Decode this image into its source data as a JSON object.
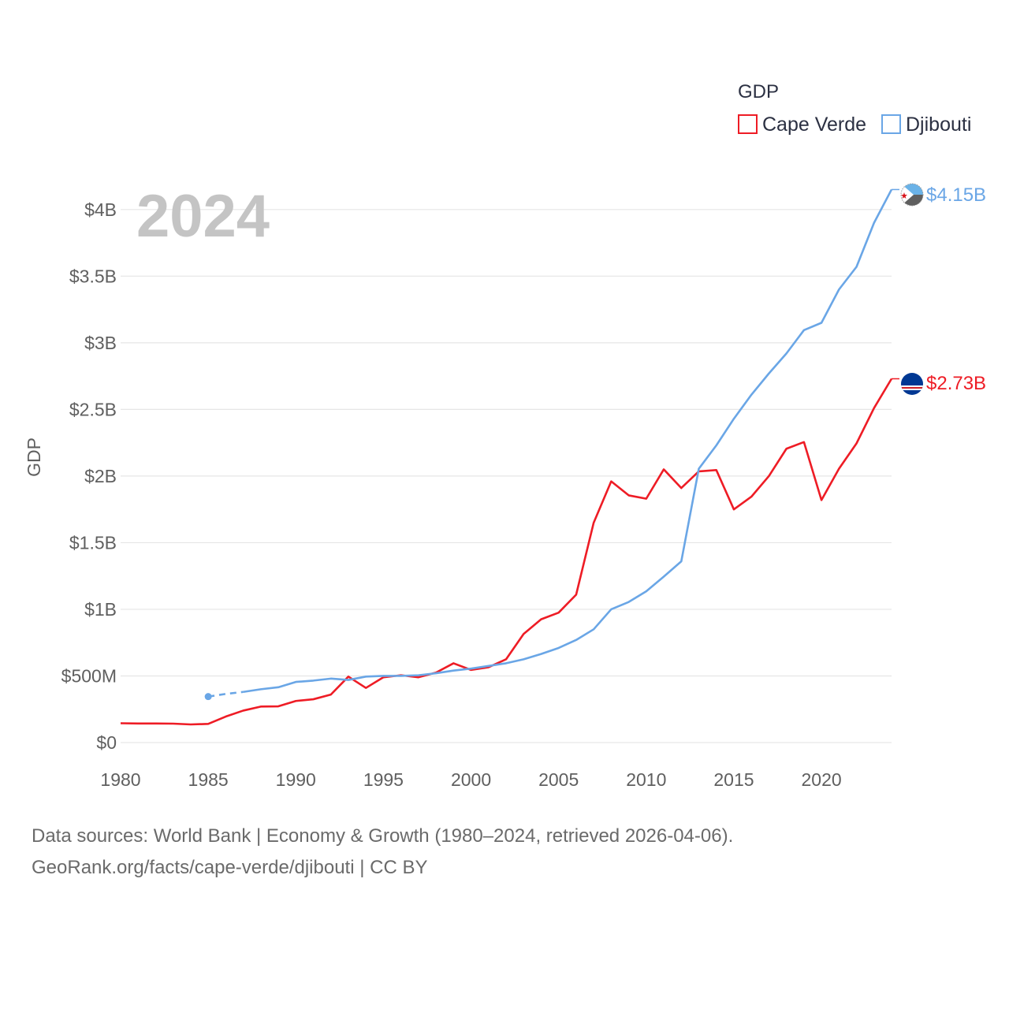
{
  "colors": {
    "cape_verde": "#ee1c25",
    "djibouti": "#6aa6e6",
    "grid": "#e6e6e6",
    "text": "#5f5f5f",
    "year_watermark": "#c4c4c4"
  },
  "chart_data": {
    "type": "line",
    "title": "",
    "year_label": "2024",
    "xlabel": "",
    "ylabel": "GDP",
    "xlim": [
      1980,
      2024
    ],
    "ylim": [
      0,
      4200000000
    ],
    "x_ticks": [
      1980,
      1985,
      1990,
      1995,
      2000,
      2005,
      2010,
      2015,
      2020
    ],
    "x_tick_labels": [
      "1980",
      "1985",
      "1990",
      "1995",
      "2000",
      "2005",
      "2010",
      "2015",
      "2020"
    ],
    "y_ticks": [
      0,
      500000000,
      1000000000,
      1500000000,
      2000000000,
      2500000000,
      3000000000,
      3500000000,
      4000000000
    ],
    "y_tick_labels": [
      "$0",
      "$500M",
      "$1B",
      "$1.5B",
      "$2B",
      "$2.5B",
      "$3B",
      "$3.5B",
      "$4B"
    ],
    "legend": {
      "title": "GDP",
      "position": "top-right",
      "entries": [
        "Cape Verde",
        "Djibouti"
      ]
    },
    "series": [
      {
        "name": "Cape Verde",
        "color": "#ee1c25",
        "end_label": "$2.73B",
        "x": [
          1980,
          1981,
          1982,
          1983,
          1984,
          1985,
          1986,
          1987,
          1988,
          1989,
          1990,
          1991,
          1992,
          1993,
          1994,
          1995,
          1996,
          1997,
          1998,
          1999,
          2000,
          2001,
          2002,
          2003,
          2004,
          2005,
          2006,
          2007,
          2008,
          2009,
          2010,
          2011,
          2012,
          2013,
          2014,
          2015,
          2016,
          2017,
          2018,
          2019,
          2020,
          2021,
          2022,
          2023,
          2024
        ],
        "values": [
          145000000,
          143000000,
          143000000,
          142000000,
          136000000,
          140000000,
          195000000,
          240000000,
          270000000,
          272000000,
          312000000,
          325000000,
          360000000,
          495000000,
          410000000,
          490000000,
          505000000,
          490000000,
          525000000,
          595000000,
          545000000,
          565000000,
          625000000,
          815000000,
          925000000,
          975000000,
          1110000000,
          1650000000,
          1960000000,
          1855000000,
          1830000000,
          2050000000,
          1910000000,
          2035000000,
          2045000000,
          1750000000,
          1845000000,
          2000000000,
          2205000000,
          2255000000,
          1820000000,
          2055000000,
          2245000000,
          2510000000,
          2730000000
        ]
      },
      {
        "name": "Djibouti",
        "color": "#6aa6e6",
        "end_label": "$4.15B",
        "dashed_until": 1987,
        "x": [
          1985,
          1986,
          1987,
          1988,
          1989,
          1990,
          1991,
          1992,
          1993,
          1994,
          1995,
          1996,
          1997,
          1998,
          1999,
          2000,
          2001,
          2002,
          2003,
          2004,
          2005,
          2006,
          2007,
          2008,
          2009,
          2010,
          2011,
          2012,
          2013,
          2014,
          2015,
          2016,
          2017,
          2018,
          2019,
          2020,
          2021,
          2022,
          2023,
          2024
        ],
        "values": [
          345000000,
          365000000,
          380000000,
          400000000,
          415000000,
          455000000,
          465000000,
          480000000,
          470000000,
          495000000,
          500000000,
          500000000,
          505000000,
          520000000,
          540000000,
          555000000,
          575000000,
          595000000,
          625000000,
          665000000,
          710000000,
          770000000,
          850000000,
          1000000000,
          1055000000,
          1135000000,
          1245000000,
          1360000000,
          2055000000,
          2230000000,
          2430000000,
          2610000000,
          2770000000,
          2920000000,
          3095000000,
          3150000000,
          3400000000,
          3570000000,
          3900000000,
          4150000000
        ]
      }
    ]
  },
  "source": {
    "line1": "Data sources: World Bank | Economy & Growth (1980–2024, retrieved 2026-04-06).",
    "line2": "GeoRank.org/facts/cape-verde/djibouti | CC BY"
  }
}
